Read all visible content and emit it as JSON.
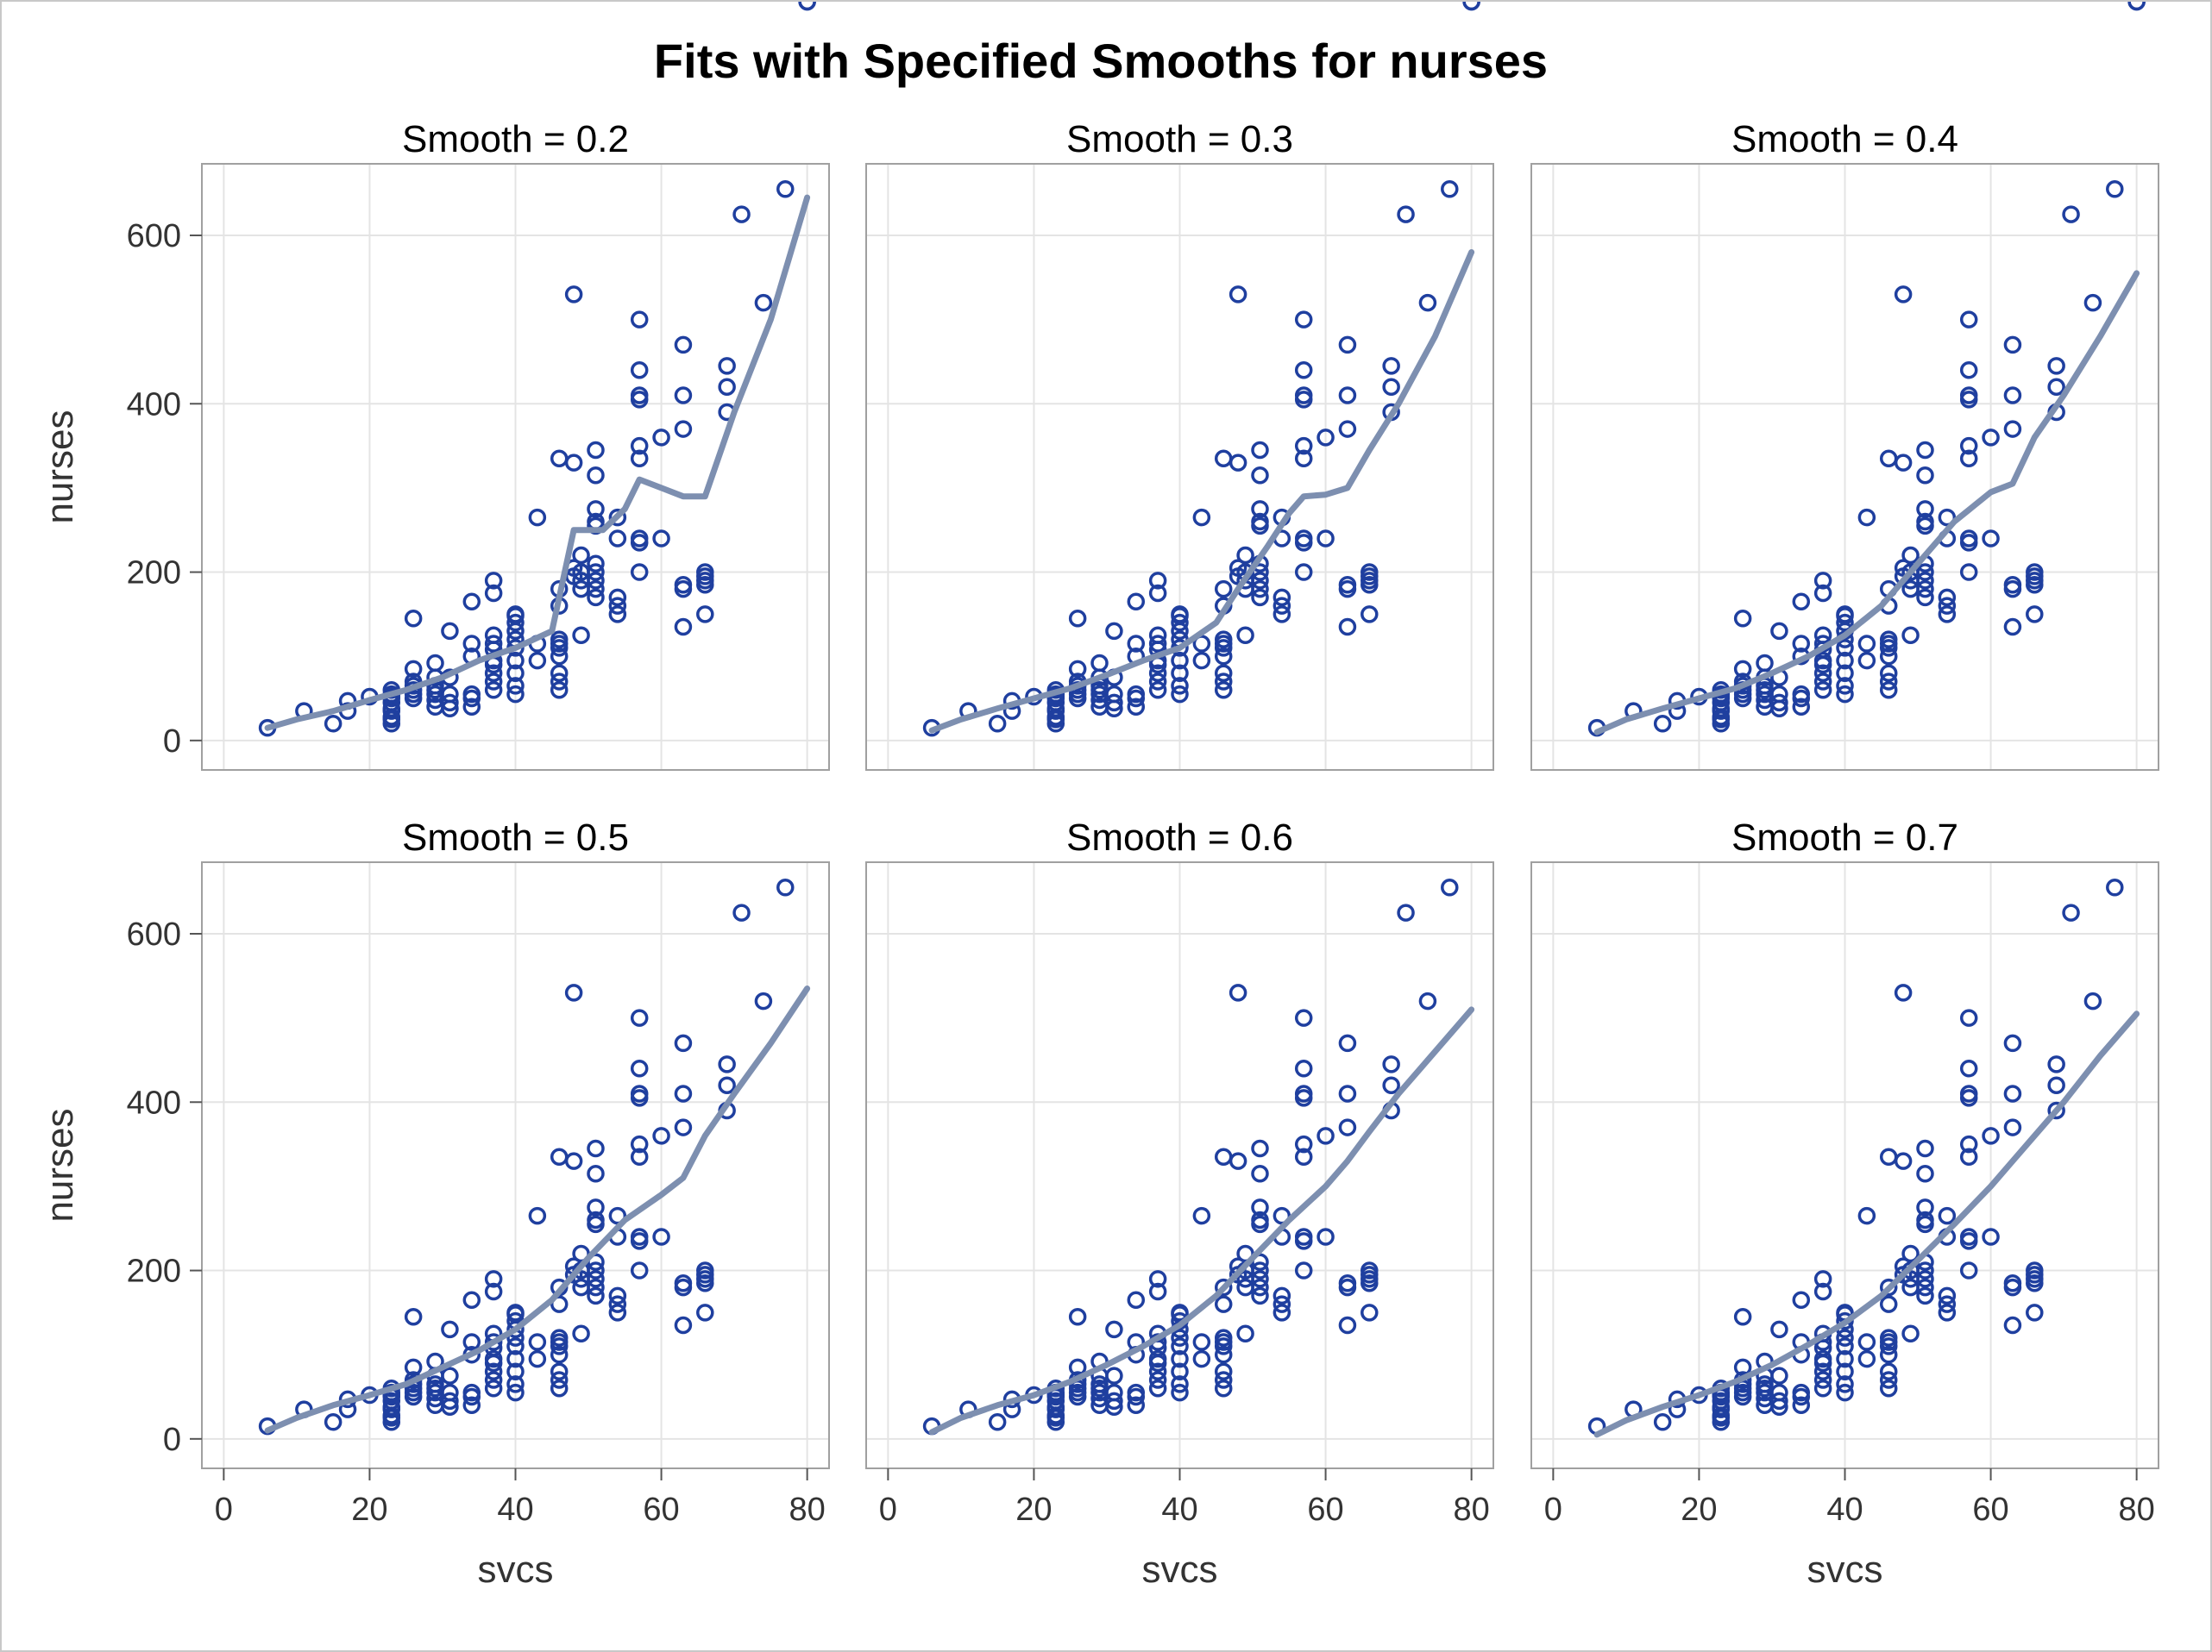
{
  "chart_data": {
    "type": "scatter",
    "title": "Fits with Specified Smooths for nurses",
    "xlabel": "svcs",
    "ylabel": "nurses",
    "xlim": [
      -3,
      83
    ],
    "ylim": [
      -35,
      685
    ],
    "xticks": [
      0,
      20,
      40,
      60,
      80
    ],
    "yticks": [
      0,
      200,
      400,
      600
    ],
    "grid": true,
    "colors": {
      "marker": "#1f3f9f",
      "fit_line": "#7d8fb0",
      "grid": "#e4e4e4",
      "frame": "#a0a0a0"
    },
    "points": {
      "svcs": [
        6,
        11,
        15,
        17,
        17,
        20,
        23,
        23,
        23,
        23,
        23,
        23,
        23,
        23,
        23,
        23,
        26,
        26,
        26,
        26,
        26,
        26,
        26,
        29,
        29,
        29,
        29,
        29,
        29,
        29,
        31,
        31,
        31,
        31,
        31,
        34,
        34,
        34,
        34,
        34,
        34,
        37,
        37,
        37,
        37,
        37,
        37,
        37,
        37,
        37,
        37,
        40,
        40,
        40,
        40,
        40,
        40,
        40,
        40,
        40,
        40,
        43,
        43,
        43,
        46,
        46,
        46,
        46,
        46,
        46,
        46,
        46,
        46,
        46,
        48,
        48,
        48,
        48,
        49,
        49,
        49,
        49,
        49,
        51,
        51,
        51,
        51,
        51,
        51,
        51,
        51,
        51,
        51,
        54,
        54,
        54,
        54,
        54,
        57,
        57,
        57,
        57,
        57,
        57,
        57,
        57,
        57,
        60,
        60,
        63,
        63,
        63,
        63,
        63,
        63,
        66,
        66,
        66,
        66,
        66,
        69,
        69,
        69,
        71,
        74,
        77,
        80
      ],
      "nurses": [
        15,
        35,
        20,
        35,
        47,
        52,
        20,
        28,
        35,
        45,
        50,
        55,
        60,
        52,
        38,
        25,
        60,
        70,
        85,
        145,
        50,
        65,
        55,
        40,
        55,
        60,
        75,
        92,
        48,
        65,
        130,
        45,
        38,
        55,
        75,
        165,
        100,
        115,
        40,
        55,
        50,
        80,
        90,
        115,
        175,
        190,
        108,
        60,
        95,
        125,
        70,
        55,
        65,
        110,
        120,
        130,
        140,
        150,
        148,
        95,
        80,
        265,
        95,
        115,
        180,
        120,
        160,
        80,
        60,
        70,
        110,
        115,
        335,
        100,
        330,
        195,
        205,
        530,
        125,
        180,
        190,
        200,
        220,
        260,
        315,
        275,
        345,
        170,
        190,
        200,
        210,
        180,
        255,
        265,
        160,
        240,
        170,
        150,
        200,
        240,
        350,
        335,
        410,
        440,
        500,
        235,
        405,
        240,
        360,
        135,
        180,
        370,
        410,
        470,
        185,
        190,
        200,
        195,
        185,
        150,
        445,
        390,
        420,
        625,
        520,
        655
      ]
    },
    "series": [
      {
        "name": "Smooth = 0.2",
        "smooth": 0.2,
        "fit": {
          "x": [
            6,
            10,
            15,
            20,
            25,
            30,
            35,
            40,
            45,
            48,
            50,
            52,
            55,
            57,
            60,
            63,
            66,
            70,
            75,
            80
          ],
          "y": [
            15,
            25,
            35,
            48,
            60,
            75,
            95,
            110,
            130,
            250,
            250,
            250,
            275,
            310,
            300,
            290,
            290,
            390,
            500,
            645
          ]
        }
      },
      {
        "name": "Smooth = 0.3",
        "smooth": 0.3,
        "fit": {
          "x": [
            6,
            10,
            15,
            20,
            25,
            30,
            35,
            40,
            45,
            48,
            50,
            52,
            55,
            57,
            60,
            63,
            66,
            70,
            75,
            80
          ],
          "y": [
            12,
            25,
            38,
            50,
            62,
            78,
            95,
            110,
            140,
            180,
            205,
            230,
            270,
            290,
            292,
            300,
            345,
            400,
            480,
            580
          ]
        }
      },
      {
        "name": "Smooth = 0.4",
        "smooth": 0.4,
        "fit": {
          "x": [
            6,
            10,
            15,
            20,
            25,
            30,
            35,
            40,
            45,
            50,
            55,
            60,
            63,
            66,
            70,
            75,
            80
          ],
          "y": [
            10,
            25,
            38,
            50,
            62,
            80,
            100,
            125,
            160,
            210,
            260,
            295,
            305,
            360,
            410,
            480,
            555
          ]
        }
      },
      {
        "name": "Smooth = 0.5",
        "smooth": 0.5,
        "fit": {
          "x": [
            6,
            10,
            15,
            20,
            25,
            30,
            35,
            40,
            45,
            50,
            55,
            60,
            63,
            66,
            70,
            75,
            80
          ],
          "y": [
            10,
            25,
            40,
            52,
            65,
            85,
            105,
            130,
            165,
            215,
            260,
            290,
            310,
            360,
            410,
            470,
            535
          ]
        }
      },
      {
        "name": "Smooth = 0.6",
        "smooth": 0.6,
        "fit": {
          "x": [
            6,
            10,
            15,
            20,
            25,
            30,
            35,
            40,
            45,
            50,
            55,
            60,
            63,
            66,
            70,
            75,
            80
          ],
          "y": [
            8,
            25,
            40,
            52,
            68,
            88,
            110,
            135,
            170,
            215,
            260,
            300,
            330,
            365,
            410,
            460,
            510
          ]
        }
      },
      {
        "name": "Smooth = 0.7",
        "smooth": 0.7,
        "fit": {
          "x": [
            6,
            10,
            15,
            20,
            25,
            30,
            35,
            40,
            45,
            50,
            55,
            60,
            63,
            66,
            70,
            75,
            80
          ],
          "y": [
            5,
            22,
            38,
            52,
            68,
            88,
            112,
            138,
            170,
            212,
            255,
            300,
            330,
            360,
            400,
            455,
            505
          ]
        }
      }
    ]
  }
}
